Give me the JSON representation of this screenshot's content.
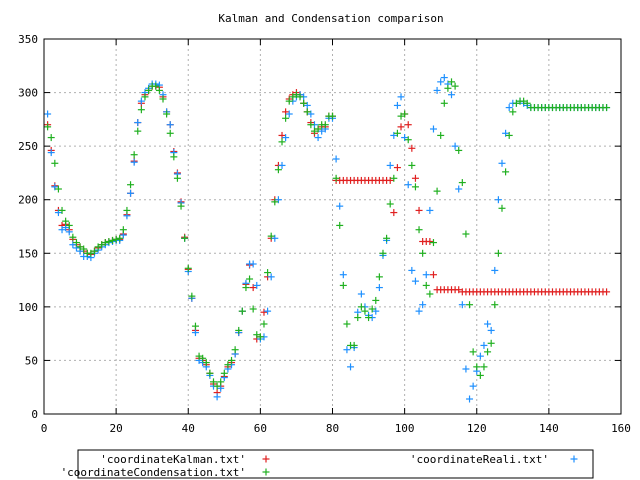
{
  "chart_data": {
    "type": "scatter",
    "title": "Kalman and Condensation comparison",
    "xlabel": "",
    "ylabel": "",
    "xlim": [
      0,
      160
    ],
    "ylim": [
      0,
      350
    ],
    "x_ticks": [
      "0",
      "20",
      "40",
      "60",
      "80",
      "100",
      "120",
      "140",
      "160"
    ],
    "y_ticks": [
      "0",
      "50",
      "100",
      "150",
      "200",
      "250",
      "300",
      "350"
    ],
    "grid": true,
    "legend_position": "bottom",
    "series": [
      {
        "name": "'coordinateKalman.txt'",
        "color": "#e02020",
        "marker": "plus",
        "x": [
          1,
          2,
          3,
          4,
          5,
          6,
          7,
          8,
          9,
          10,
          11,
          12,
          13,
          14,
          15,
          16,
          17,
          18,
          19,
          20,
          21,
          22,
          23,
          24,
          25,
          26,
          27,
          28,
          29,
          30,
          31,
          32,
          33,
          34,
          35,
          36,
          37,
          38,
          39,
          40,
          41,
          42,
          43,
          44,
          45,
          46,
          47,
          48,
          49,
          50,
          51,
          52,
          53,
          54,
          55,
          56,
          57,
          58,
          59,
          60,
          61,
          62,
          63,
          64,
          65,
          66,
          67,
          68,
          69,
          70,
          71,
          72,
          73,
          74,
          75,
          76,
          77,
          78,
          79,
          80,
          81,
          82,
          83,
          84,
          85,
          86,
          87,
          88,
          89,
          90,
          91,
          92,
          93,
          94,
          95,
          96,
          97,
          98,
          99,
          100,
          101,
          102,
          103,
          104,
          105,
          106,
          107,
          108,
          109,
          110,
          111,
          112,
          113,
          114,
          115,
          116,
          117,
          118,
          119,
          120,
          121,
          122,
          123,
          124,
          125,
          126,
          127,
          128,
          129,
          130,
          131,
          132,
          133,
          134,
          135,
          136,
          137,
          138,
          139,
          140,
          141,
          142,
          143,
          144,
          145,
          146,
          147,
          148,
          149,
          150,
          151,
          152,
          153,
          154,
          155,
          156
        ],
        "y": [
          270,
          246,
          213,
          190,
          176,
          177,
          172,
          163,
          158,
          156,
          152,
          150,
          149,
          152,
          155,
          158,
          160,
          161,
          162,
          163,
          163,
          168,
          186,
          206,
          236,
          272,
          290,
          298,
          302,
          306,
          306,
          305,
          296,
          282,
          270,
          245,
          225,
          198,
          165,
          135,
          108,
          78,
          52,
          50,
          46,
          38,
          28,
          20,
          26,
          35,
          44,
          48,
          56,
          76,
          96,
          121,
          139,
          118,
          70,
          72,
          95,
          128,
          164,
          200,
          232,
          260,
          282,
          294,
          298,
          300,
          298,
          290,
          282,
          272,
          262,
          266,
          268,
          268,
          278,
          278,
          218,
          218,
          218,
          218,
          218,
          218,
          218,
          218,
          218,
          218,
          218,
          218,
          218,
          218,
          218,
          218,
          188,
          230,
          268,
          280,
          270,
          248,
          220,
          190,
          161,
          161,
          161,
          130,
          116,
          116,
          116,
          116,
          116,
          116,
          116,
          114,
          114,
          114,
          114,
          114,
          114,
          114,
          114,
          114,
          114,
          114,
          114,
          114,
          114,
          114,
          114,
          114,
          114,
          114,
          114,
          114,
          114,
          114,
          114,
          114,
          114,
          114,
          114,
          114,
          114,
          114,
          114,
          114,
          114,
          114,
          114,
          114,
          114,
          114,
          114,
          114
        ],
        "note": ""
      },
      {
        "name": "'coordinateReali.txt'",
        "color": "#1e90ff",
        "marker": "plus",
        "x": [
          1,
          2,
          3,
          4,
          5,
          6,
          7,
          8,
          9,
          10,
          11,
          12,
          13,
          14,
          15,
          16,
          17,
          18,
          19,
          20,
          21,
          22,
          23,
          24,
          25,
          26,
          27,
          28,
          29,
          30,
          31,
          32,
          33,
          34,
          35,
          36,
          37,
          38,
          39,
          40,
          41,
          42,
          43,
          44,
          45,
          46,
          47,
          48,
          49,
          50,
          51,
          52,
          53,
          54,
          55,
          56,
          57,
          58,
          59,
          60,
          61,
          62,
          63,
          64,
          65,
          66,
          67,
          68,
          69,
          70,
          71,
          72,
          73,
          74,
          75,
          76,
          77,
          78,
          79,
          80,
          81,
          82,
          83,
          84,
          85,
          86,
          87,
          88,
          89,
          90,
          91,
          92,
          93,
          94,
          95,
          96,
          97,
          98,
          99,
          100,
          101,
          102,
          103,
          104,
          105,
          106,
          107,
          108,
          109,
          110,
          111,
          112,
          113,
          114,
          115,
          116,
          117,
          118,
          119,
          120,
          121,
          122,
          123,
          124,
          125,
          126,
          127,
          128,
          129,
          130,
          131,
          132,
          133,
          134,
          135,
          136,
          137,
          138,
          139,
          140,
          141,
          142,
          143,
          144,
          145,
          146,
          147,
          148,
          149,
          150,
          151,
          152,
          153,
          154,
          155,
          156
        ],
        "y": [
          280,
          244,
          212,
          188,
          172,
          174,
          170,
          158,
          155,
          152,
          147,
          147,
          146,
          150,
          153,
          156,
          158,
          160,
          161,
          162,
          162,
          167,
          185,
          206,
          235,
          272,
          292,
          300,
          304,
          308,
          308,
          307,
          298,
          282,
          270,
          244,
          224,
          197,
          164,
          133,
          108,
          76,
          50,
          48,
          44,
          36,
          26,
          16,
          24,
          34,
          42,
          46,
          56,
          76,
          96,
          122,
          140,
          140,
          120,
          70,
          72,
          96,
          128,
          164,
          200,
          232,
          258,
          280,
          292,
          296,
          298,
          296,
          288,
          280,
          270,
          258,
          264,
          266,
          276,
          276,
          238,
          194,
          130,
          60,
          44,
          62,
          95,
          112,
          100,
          92,
          90,
          96,
          118,
          148,
          162,
          232,
          260,
          288,
          296,
          258,
          214,
          134,
          124,
          96,
          102,
          130,
          190,
          266,
          302,
          310,
          314,
          308,
          298,
          250,
          210,
          102,
          42,
          14,
          26,
          40,
          54,
          64,
          84,
          78,
          134,
          200,
          234,
          262,
          286,
          290,
          290,
          292,
          290,
          288,
          286,
          286,
          286,
          286,
          286,
          286,
          286,
          286,
          286,
          286,
          286,
          286,
          286,
          286,
          286,
          286,
          286,
          286,
          286,
          286,
          286,
          286
        ]
      },
      {
        "name": "'coordinateCondensation.txt'",
        "color": "#20b020",
        "marker": "plus",
        "x": [
          1,
          2,
          3,
          4,
          5,
          6,
          7,
          8,
          9,
          10,
          11,
          12,
          13,
          14,
          15,
          16,
          17,
          18,
          19,
          20,
          21,
          22,
          23,
          24,
          25,
          26,
          27,
          28,
          29,
          30,
          31,
          32,
          33,
          34,
          35,
          36,
          37,
          38,
          39,
          40,
          41,
          42,
          43,
          44,
          45,
          46,
          47,
          48,
          49,
          50,
          51,
          52,
          53,
          54,
          55,
          56,
          57,
          58,
          59,
          60,
          61,
          62,
          63,
          64,
          65,
          66,
          67,
          68,
          69,
          70,
          71,
          72,
          73,
          74,
          75,
          76,
          77,
          78,
          79,
          80,
          81,
          82,
          83,
          84,
          85,
          86,
          87,
          88,
          89,
          90,
          91,
          92,
          93,
          94,
          95,
          96,
          97,
          98,
          99,
          100,
          101,
          102,
          103,
          104,
          105,
          106,
          107,
          108,
          109,
          110,
          111,
          112,
          113,
          114,
          115,
          116,
          117,
          118,
          119,
          120,
          121,
          122,
          123,
          124,
          125,
          126,
          127,
          128,
          129,
          130,
          131,
          132,
          133,
          134,
          135,
          136,
          137,
          138,
          139,
          140,
          141,
          142,
          143,
          144,
          145,
          146,
          147,
          148,
          149,
          150,
          151,
          152,
          153,
          154,
          155,
          156
        ],
        "y": [
          268,
          258,
          234,
          210,
          190,
          180,
          176,
          165,
          160,
          156,
          154,
          150,
          150,
          152,
          156,
          158,
          160,
          161,
          162,
          163,
          164,
          172,
          190,
          214,
          242,
          264,
          284,
          296,
          302,
          306,
          306,
          302,
          294,
          280,
          262,
          240,
          220,
          194,
          164,
          136,
          110,
          82,
          54,
          52,
          48,
          38,
          30,
          26,
          30,
          38,
          46,
          50,
          60,
          78,
          96,
          118,
          126,
          98,
          74,
          72,
          84,
          132,
          166,
          198,
          228,
          254,
          276,
          292,
          296,
          298,
          296,
          290,
          282,
          270,
          264,
          266,
          270,
          270,
          278,
          278,
          220,
          176,
          120,
          84,
          64,
          64,
          90,
          100,
          96,
          90,
          98,
          106,
          128,
          150,
          164,
          196,
          220,
          262,
          278,
          280,
          256,
          232,
          212,
          172,
          150,
          120,
          112,
          160,
          208,
          260,
          290,
          304,
          310,
          306,
          246,
          216,
          168,
          102,
          58,
          44,
          36,
          44,
          58,
          66,
          102,
          150,
          192,
          226,
          260,
          282,
          290,
          292,
          292,
          290,
          286,
          286,
          286,
          286,
          286,
          286,
          286,
          286,
          286,
          286,
          286,
          286,
          286,
          286,
          286,
          286,
          286,
          286,
          286,
          286,
          286,
          286
        ]
      }
    ]
  }
}
